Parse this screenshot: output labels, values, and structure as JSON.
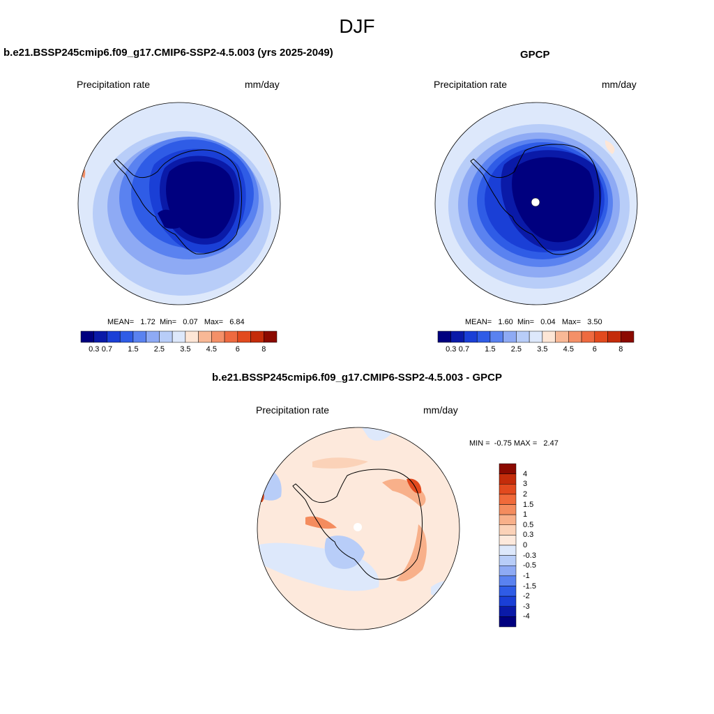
{
  "title": "DJF",
  "panels": [
    {
      "id": "model",
      "title": "b.e21.BSSP245cmip6.f09_g17.CMIP6-SSP2-4.5.003 (yrs 2025-2049)",
      "variable": "Precipitation rate",
      "units": "mm/day",
      "stats": {
        "mean_label": "MEAN=",
        "mean": "1.72",
        "min_label": "Min=",
        "min": "0.07",
        "max_label": "Max=",
        "max": "6.84"
      }
    },
    {
      "id": "obs",
      "title": "GPCP",
      "variable": "Precipitation rate",
      "units": "mm/day",
      "stats": {
        "mean_label": "MEAN=",
        "mean": "1.60",
        "min_label": "Min=",
        "min": "0.04",
        "max_label": "Max=",
        "max": "3.50"
      }
    },
    {
      "id": "diff",
      "title": "b.e21.BSSP245cmip6.f09_g17.CMIP6-SSP2-4.5.003 - GPCP",
      "variable": "Precipitation rate",
      "units": "mm/day",
      "stats": {
        "min_label": "MIN =",
        "min": "-0.75",
        "max_label": "MAX =",
        "max": "2.47"
      }
    }
  ],
  "colorbars": {
    "precip": {
      "colors": [
        "#00007f",
        "#0a1aa8",
        "#1a3fd6",
        "#2f5ce6",
        "#5a82f0",
        "#8eaaf4",
        "#b8cdf8",
        "#dde8fb",
        "#fde6d6",
        "#f8b896",
        "#f49068",
        "#ee6a40",
        "#e24a1e",
        "#c42c0a",
        "#8b0a00"
      ],
      "labels": [
        "0.3",
        "0.7",
        "1.5",
        "2.5",
        "3.5",
        "4.5",
        "6",
        "8"
      ]
    },
    "diff": {
      "colors": [
        "#8b0a00",
        "#c42c0a",
        "#e24a1e",
        "#f06a3a",
        "#f48c5e",
        "#f8b08a",
        "#fbd2b8",
        "#fde9dc",
        "#dde8fb",
        "#b8cdf8",
        "#8eaaf4",
        "#5a82f0",
        "#2f5ce6",
        "#1a3fd6",
        "#0a1aa8",
        "#00007f"
      ],
      "labels": [
        "4",
        "3",
        "2",
        "1.5",
        "1",
        "0.5",
        "0.3",
        "0",
        "-0.3",
        "-0.5",
        "-1",
        "-1.5",
        "-2",
        "-3",
        "-4"
      ]
    }
  }
}
